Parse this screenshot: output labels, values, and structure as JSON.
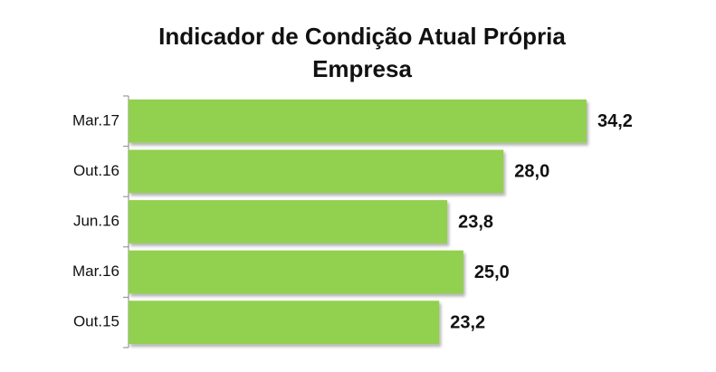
{
  "chart_data": {
    "type": "hbar",
    "title": "Indicador de Condição Atual Própria Empresa",
    "categories": [
      "Mar.17",
      "Out.16",
      "Jun.16",
      "Mar.16",
      "Out.15"
    ],
    "values": [
      34.2,
      28.0,
      23.8,
      25.0,
      23.2
    ],
    "value_labels": [
      "34,2",
      "28,0",
      "23,8",
      "25,0",
      "23,2"
    ],
    "color": "#92d050"
  }
}
